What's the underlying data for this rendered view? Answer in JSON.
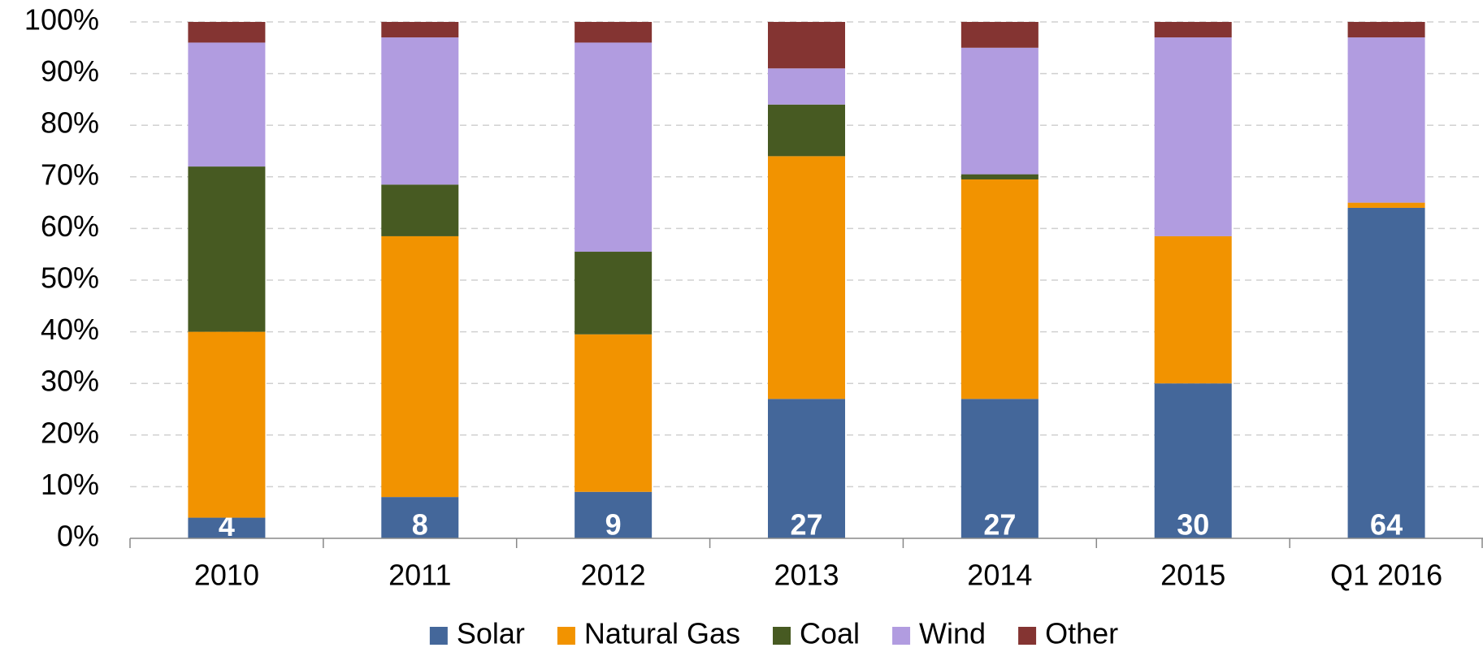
{
  "chart_data": {
    "type": "stacked_bar",
    "categories": [
      "2010",
      "2011",
      "2012",
      "2013",
      "2014",
      "2015",
      "Q1 2016"
    ],
    "series": [
      {
        "name": "Solar",
        "color": "#44679a",
        "values": [
          4,
          8,
          9,
          27,
          27,
          30,
          64
        ],
        "show_labels": true
      },
      {
        "name": "Natural Gas",
        "color": "#f29300",
        "values": [
          36,
          50.5,
          30.5,
          47,
          42.5,
          28.5,
          1
        ]
      },
      {
        "name": "Coal",
        "color": "#475a22",
        "values": [
          32,
          10,
          16,
          10,
          1,
          0,
          0
        ]
      },
      {
        "name": "Wind",
        "color": "#b19ce0",
        "values": [
          24,
          28.5,
          40.5,
          7,
          24.5,
          38.5,
          32
        ]
      },
      {
        "name": "Other",
        "color": "#843432",
        "values": [
          4,
          3,
          4,
          9,
          5,
          3,
          3
        ]
      }
    ],
    "ylim": [
      0,
      100
    ],
    "yticks": [
      {
        "value": 0,
        "label": "0%"
      },
      {
        "value": 10,
        "label": "10%"
      },
      {
        "value": 20,
        "label": "20%"
      },
      {
        "value": 30,
        "label": "30%"
      },
      {
        "value": 40,
        "label": "40%"
      },
      {
        "value": 50,
        "label": "50%"
      },
      {
        "value": 60,
        "label": "60%"
      },
      {
        "value": 70,
        "label": "70%"
      },
      {
        "value": 80,
        "label": "80%"
      },
      {
        "value": 90,
        "label": "90%"
      },
      {
        "value": 100,
        "label": "100%"
      }
    ],
    "grid": true,
    "legend": "bottom"
  }
}
